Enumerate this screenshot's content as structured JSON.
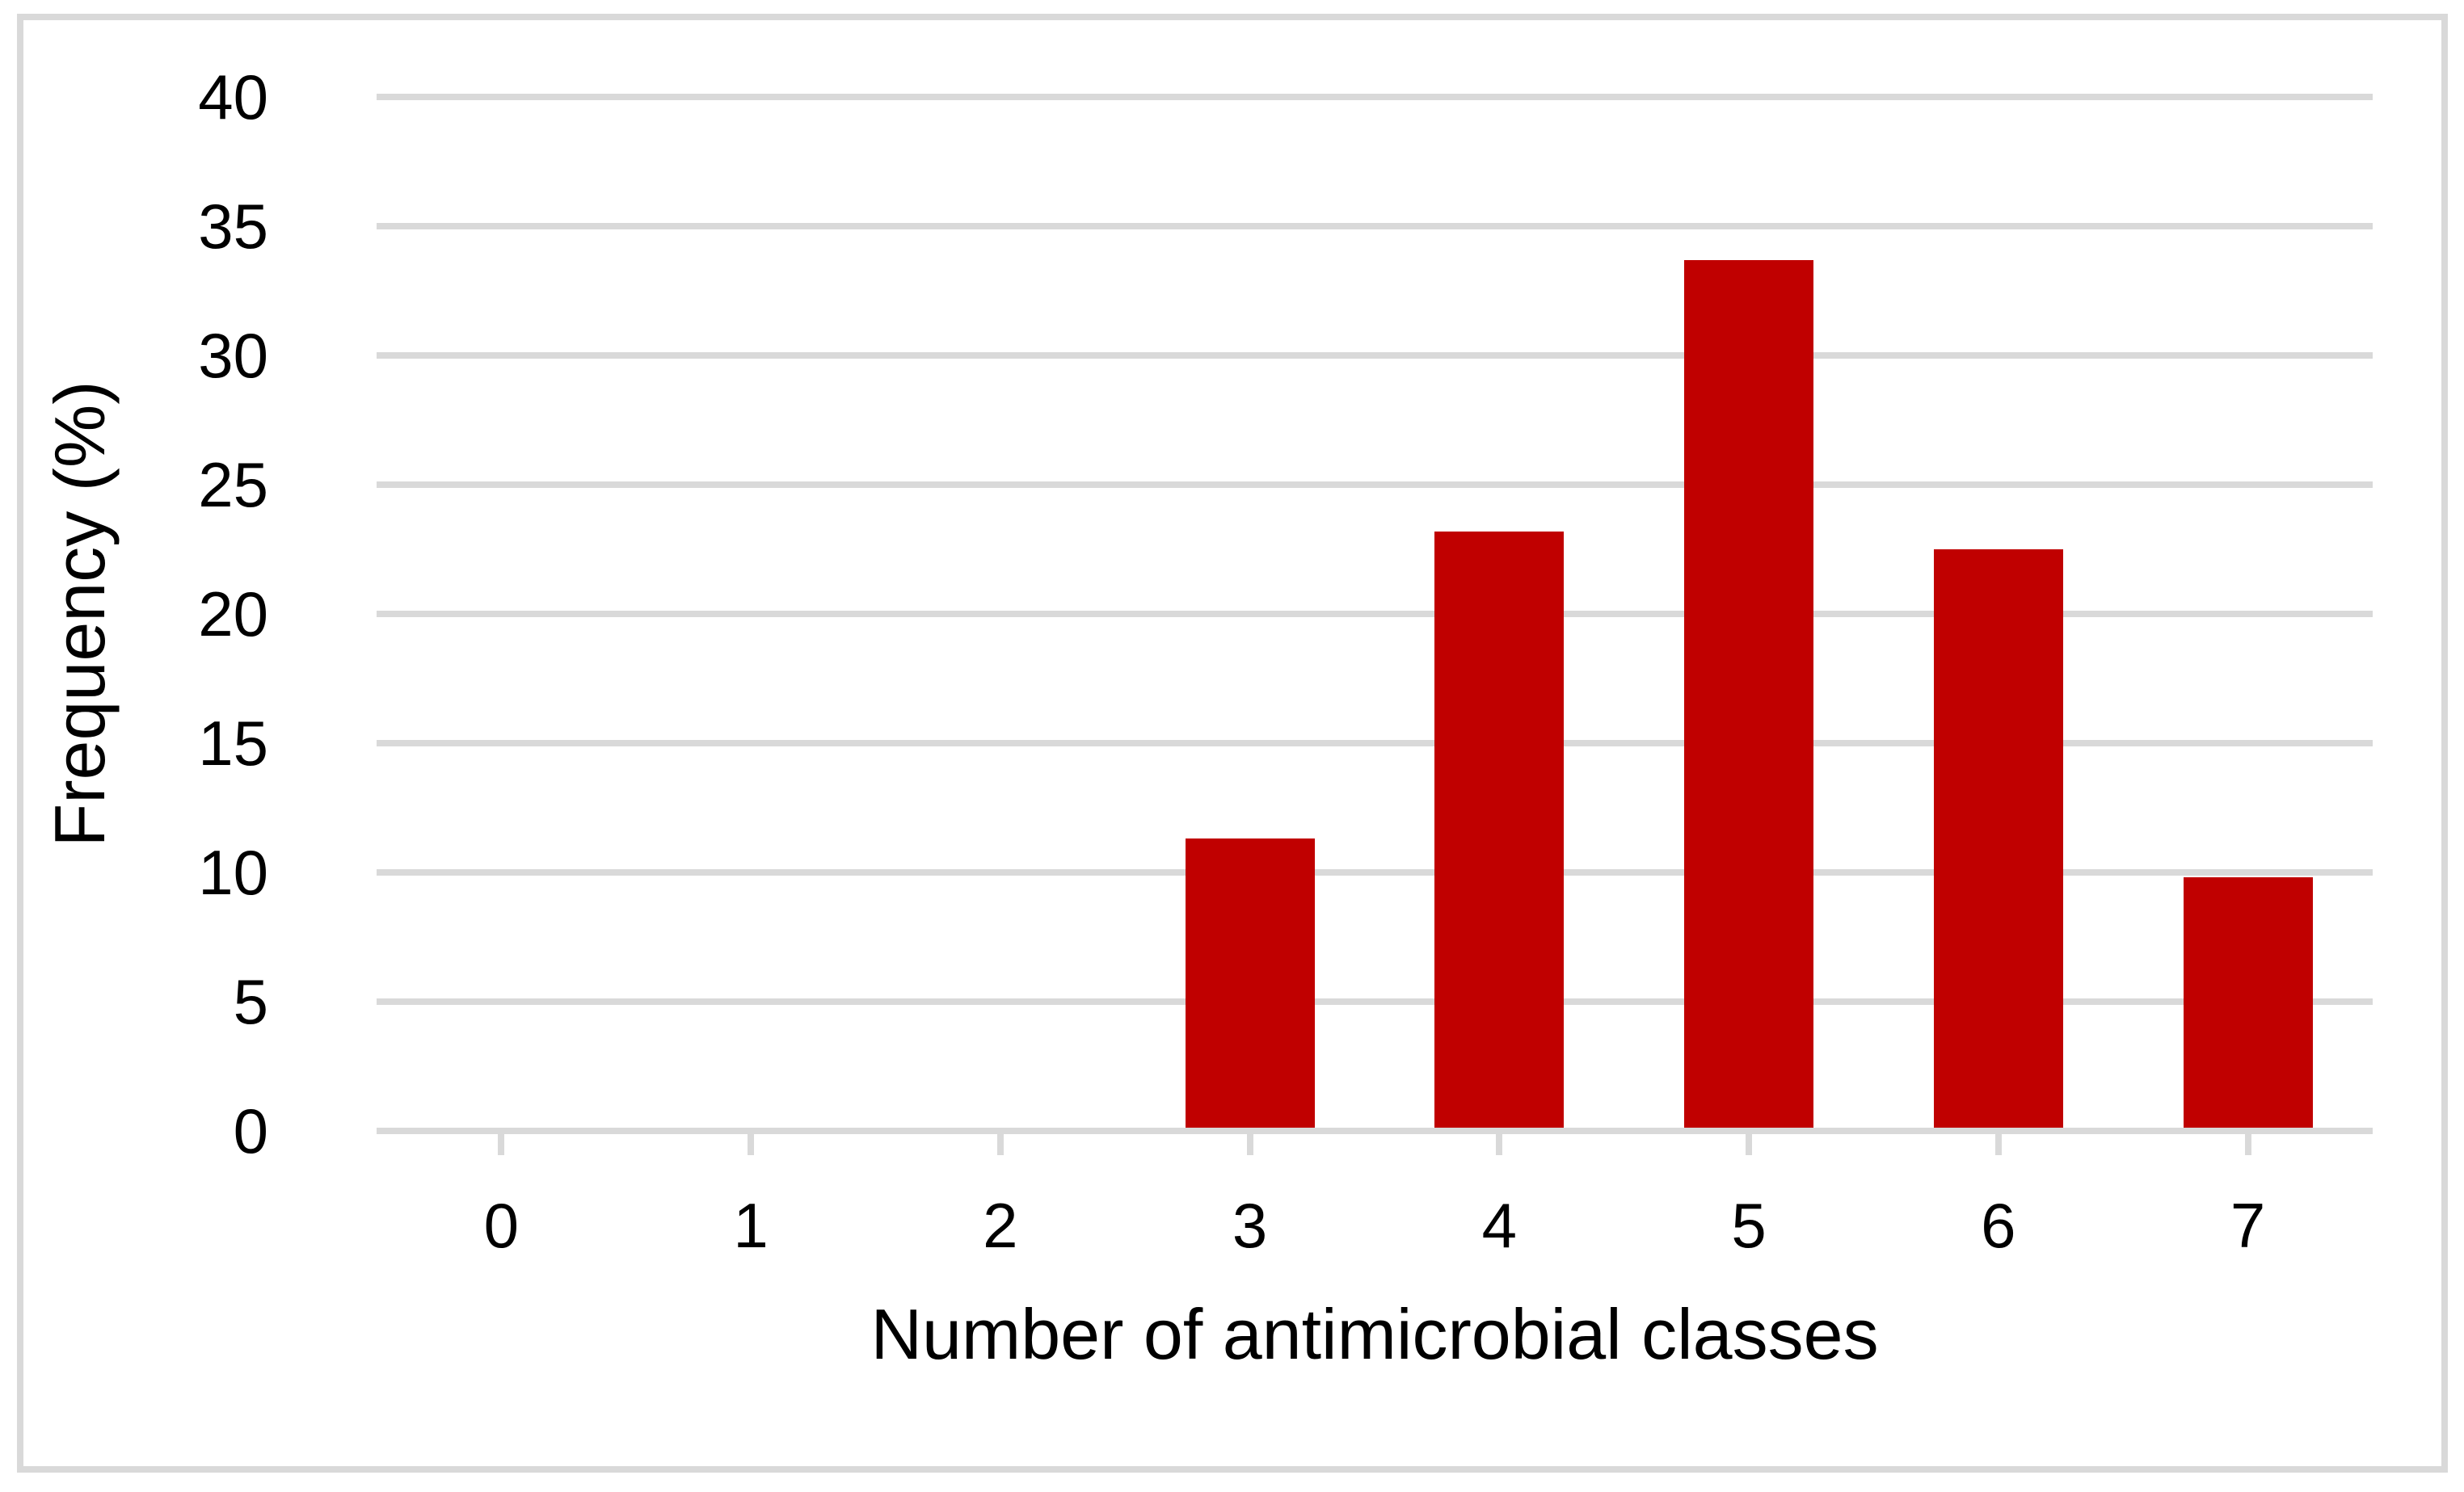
{
  "chart_data": {
    "type": "bar",
    "title": "",
    "xlabel": "Number of antimicrobial classes",
    "ylabel": "Frequency (%)",
    "categories": [
      "0",
      "1",
      "2",
      "3",
      "4",
      "5",
      "6",
      "7"
    ],
    "values": [
      0,
      0,
      0,
      11.3,
      23.2,
      33.7,
      22.5,
      9.8
    ],
    "y_ticks": [
      0,
      5,
      10,
      15,
      20,
      25,
      30,
      35,
      40
    ],
    "ylim": [
      0,
      40
    ],
    "grid": "horizontal gridlines on",
    "legend": "none",
    "colors": {
      "bar": "#C00000",
      "gridline": "#D9D9D9",
      "axis_line": "#D9D9D9",
      "frame_border": "#D9D9D9",
      "text": "#000000",
      "background": "#FFFFFF"
    }
  }
}
